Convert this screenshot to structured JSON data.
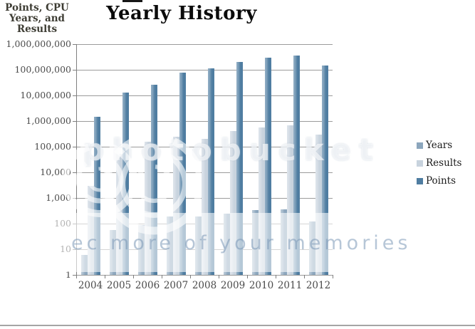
{
  "header": {
    "y_axis_title_lines": [
      "Points, CPU",
      "Years, and",
      "Results"
    ]
  },
  "chart_data": {
    "type": "bar",
    "scale": "log",
    "title": "Yearly History",
    "ylabel": "Points, CPU Years, and Results",
    "xlabel": "",
    "categories": [
      "2004",
      "2005",
      "2006",
      "2007",
      "2008",
      "2009",
      "2010",
      "2011",
      "2012"
    ],
    "series": [
      {
        "name": "Years",
        "color": "#8ca6bd",
        "values": [
          6,
          57,
          90,
          195,
          185,
          245,
          330,
          370,
          120
        ]
      },
      {
        "name": "Results",
        "color": "#c8d3de",
        "values": [
          2900,
          52000,
          160000,
          240000,
          205000,
          410000,
          575000,
          700000,
          290000
        ]
      },
      {
        "name": "Points",
        "color": "#4f7da1",
        "values": [
          1500000,
          13000000,
          26000000,
          78000000,
          115000000,
          205000000,
          290000000,
          370000000,
          150000000
        ]
      }
    ],
    "ylim": [
      1,
      1000000000
    ],
    "yticks": [
      "1,000,000,000",
      "100,000,000",
      "10,000,000",
      "1,000,000",
      "100,000",
      "10,000",
      "1,000",
      "100",
      "10",
      "1"
    ],
    "legend_position": "right",
    "grid": true
  },
  "watermark": {
    "center_text": "photobucket",
    "band_text": "ec  more of your memories"
  }
}
